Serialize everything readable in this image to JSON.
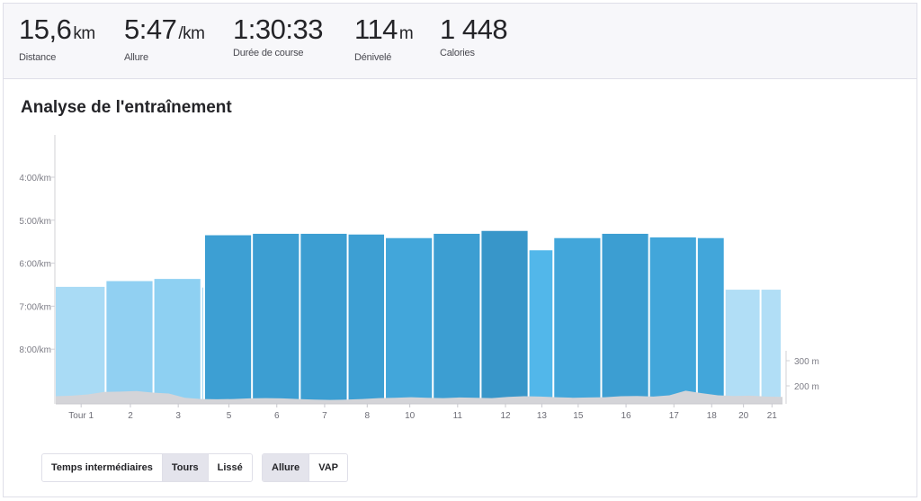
{
  "stats": [
    {
      "value": "15,6",
      "unit": "km",
      "label": "Distance"
    },
    {
      "value": "5:47",
      "unit": "/km",
      "label": "Allure"
    },
    {
      "value": "1:30:33",
      "unit": "",
      "label": "Durée de course"
    },
    {
      "value": "114",
      "unit": "m",
      "label": "Dénivelé"
    },
    {
      "value": "1 448",
      "unit": "",
      "label": "Calories"
    }
  ],
  "section_title": "Analyse de l'entraînement",
  "chart_data": {
    "type": "bar",
    "title": "",
    "y_ticks": [
      "4:00/km",
      "5:00/km",
      "6:00/km",
      "7:00/km",
      "8:00/km"
    ],
    "y_range_sec_per_km": [
      180,
      540
    ],
    "y_reversed": true,
    "elevation_ticks": [
      "300 m",
      "200 m"
    ],
    "laps": [
      {
        "label": "Tour 1",
        "pace": "6:33",
        "pace_s": 393,
        "color": "#a9dbf5"
      },
      {
        "label": "2",
        "pace": "6:25",
        "pace_s": 385,
        "color": "#91d0f2"
      },
      {
        "label": "3",
        "pace": "6:22",
        "pace_s": 382,
        "color": "#8ed0f2"
      },
      {
        "label": "",
        "pace": "6:34",
        "pace_s": 394,
        "color": "#a9dbf5"
      },
      {
        "label": "5",
        "pace": "5:21",
        "pace_s": 321,
        "color": "#3d9fd3"
      },
      {
        "label": "6",
        "pace": "5:19",
        "pace_s": 319,
        "color": "#3c9ed2"
      },
      {
        "label": "7",
        "pace": "5:19",
        "pace_s": 319,
        "color": "#3c9ed2"
      },
      {
        "label": "8",
        "pace": "5:20",
        "pace_s": 320,
        "color": "#3d9fd3"
      },
      {
        "label": "10",
        "pace": "5:25",
        "pace_s": 325,
        "color": "#42a6da"
      },
      {
        "label": "11",
        "pace": "5:19",
        "pace_s": 319,
        "color": "#3c9ed2"
      },
      {
        "label": "12",
        "pace": "5:15",
        "pace_s": 315,
        "color": "#3896c9"
      },
      {
        "label": "13",
        "pace": "5:42",
        "pace_s": 342,
        "color": "#52b7ea"
      },
      {
        "label": "15",
        "pace": "5:25",
        "pace_s": 325,
        "color": "#42a6da"
      },
      {
        "label": "16",
        "pace": "5:19",
        "pace_s": 319,
        "color": "#3c9ed2"
      },
      {
        "label": "17",
        "pace": "5:24",
        "pace_s": 324,
        "color": "#42a6da"
      },
      {
        "label": "18",
        "pace": "5:25",
        "pace_s": 325,
        "color": "#42a6da"
      },
      {
        "label": "20",
        "pace": "6:37",
        "pace_s": 397,
        "color": "#b1def6"
      },
      {
        "label": "21",
        "pace": "6:37",
        "pace_s": 397,
        "color": "#b1def6"
      }
    ],
    "lap_distance_weights": [
      1.06,
      1.0,
      1.0,
      0.06,
      1.0,
      1.0,
      1.0,
      0.78,
      1.0,
      1.0,
      1.0,
      0.52,
      1.0,
      1.0,
      1.0,
      0.58,
      0.75,
      0.44
    ],
    "elevation_relative": [
      0.62,
      0.58,
      0.5,
      0.34,
      0.32,
      0.28,
      0.38,
      0.44,
      0.72,
      0.8,
      0.82,
      0.8,
      0.76,
      0.74,
      0.76,
      0.8,
      0.84,
      0.86,
      0.84,
      0.8,
      0.74,
      0.72,
      0.68,
      0.72,
      0.74,
      0.7,
      0.72,
      0.74,
      0.66,
      0.62,
      0.64,
      0.68,
      0.72,
      0.7,
      0.68,
      0.62,
      0.6,
      0.64,
      0.56,
      0.26,
      0.42,
      0.56,
      0.6,
      0.58,
      0.64,
      0.66
    ],
    "grid": false
  },
  "controls": {
    "view_group": [
      {
        "label": "Temps intermédiaires",
        "active": false
      },
      {
        "label": "Tours",
        "active": true
      },
      {
        "label": "Lissé",
        "active": false
      }
    ],
    "metric_group": [
      {
        "label": "Allure",
        "active": true
      },
      {
        "label": "VAP",
        "active": false
      }
    ]
  }
}
